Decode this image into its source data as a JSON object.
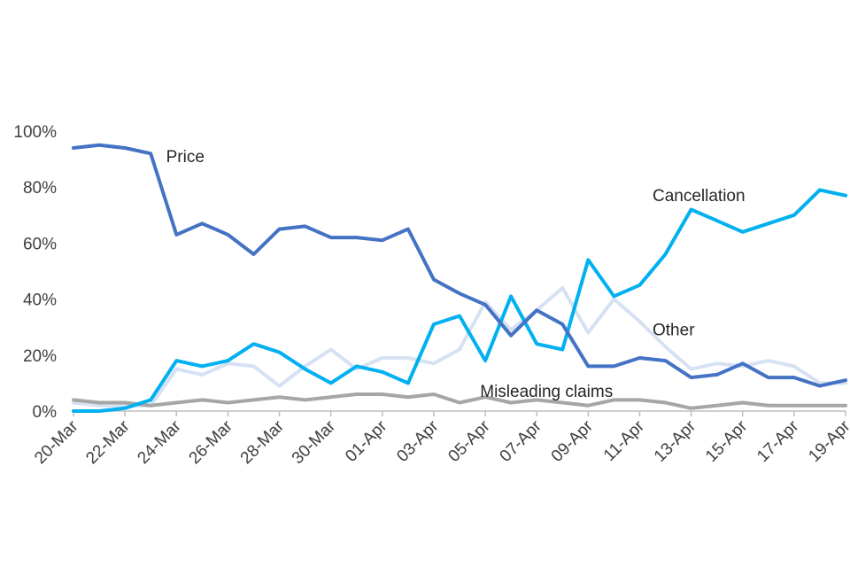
{
  "chart_data": {
    "type": "line",
    "title": "",
    "xlabel": "",
    "ylabel": "",
    "ylim": [
      0,
      100
    ],
    "yticks": [
      "0%",
      "20%",
      "40%",
      "60%",
      "80%",
      "100%"
    ],
    "ytick_values": [
      0,
      20,
      40,
      60,
      80,
      100
    ],
    "grid": false,
    "legend": "inline-labels",
    "categories": [
      "20-Mar",
      "21-Mar",
      "22-Mar",
      "23-Mar",
      "24-Mar",
      "25-Mar",
      "26-Mar",
      "27-Mar",
      "28-Mar",
      "29-Mar",
      "30-Mar",
      "31-Mar",
      "01-Apr",
      "02-Apr",
      "03-Apr",
      "04-Apr",
      "05-Apr",
      "06-Apr",
      "07-Apr",
      "08-Apr",
      "09-Apr",
      "10-Apr",
      "11-Apr",
      "12-Apr",
      "13-Apr",
      "14-Apr",
      "15-Apr",
      "16-Apr",
      "17-Apr",
      "18-Apr",
      "19-Apr"
    ],
    "xtick_labels": [
      "20-Mar",
      "22-Mar",
      "24-Mar",
      "26-Mar",
      "28-Mar",
      "30-Mar",
      "01-Apr",
      "03-Apr",
      "05-Apr",
      "07-Apr",
      "09-Apr",
      "11-Apr",
      "13-Apr",
      "15-Apr",
      "17-Apr",
      "19-Apr"
    ],
    "series": [
      {
        "name": "Price",
        "color": "#4472c4",
        "values": [
          94,
          95,
          94,
          92,
          63,
          67,
          63,
          56,
          65,
          66,
          62,
          62,
          61,
          65,
          47,
          42,
          38,
          27,
          36,
          31,
          16,
          16,
          19,
          18,
          12,
          13,
          17,
          12,
          12,
          9,
          11
        ]
      },
      {
        "name": "Cancellation",
        "color": "#00b0f0",
        "values": [
          0,
          0,
          1,
          4,
          18,
          16,
          18,
          24,
          21,
          15,
          10,
          16,
          14,
          10,
          31,
          34,
          18,
          41,
          24,
          22,
          54,
          41,
          45,
          56,
          72,
          68,
          64,
          67,
          70,
          79,
          77
        ]
      },
      {
        "name": "Other",
        "color": "#d6e1f3",
        "values": [
          3,
          2,
          2,
          2,
          15,
          13,
          17,
          16,
          9,
          16,
          22,
          15,
          19,
          19,
          17,
          22,
          39,
          29,
          36,
          44,
          28,
          40,
          32,
          23,
          15,
          17,
          16,
          18,
          16,
          10,
          10
        ]
      },
      {
        "name": "Misleading claims",
        "color": "#a6a6a6",
        "values": [
          4,
          3,
          3,
          2,
          3,
          4,
          3,
          4,
          5,
          4,
          5,
          6,
          6,
          5,
          6,
          3,
          5,
          3,
          4,
          3,
          2,
          4,
          4,
          3,
          1,
          2,
          3,
          2,
          2,
          2,
          2
        ]
      }
    ]
  }
}
